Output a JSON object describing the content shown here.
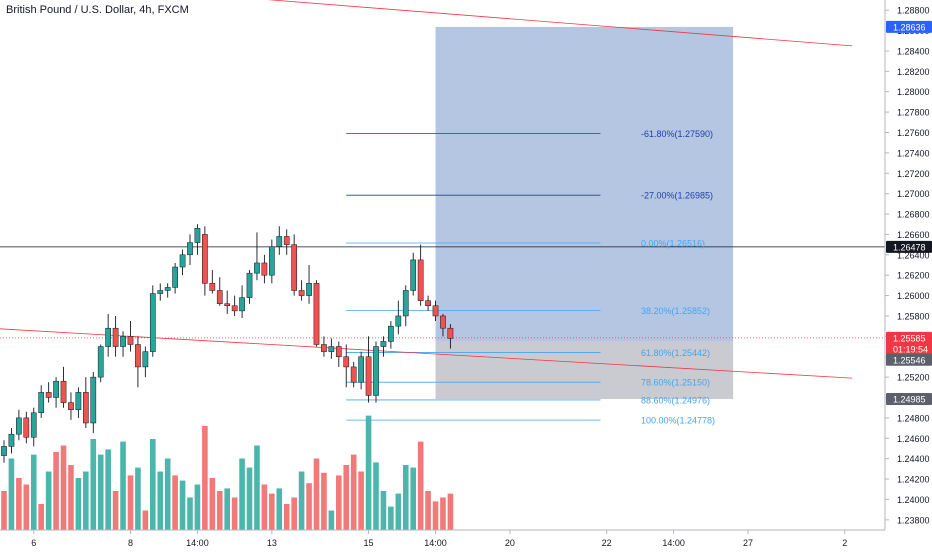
{
  "chart_data": {
    "type": "candlestick",
    "title": "British Pound / U.S. Dollar, 4h, FXCM",
    "ylim": [
      1.237,
      1.289
    ],
    "price_ticks": [
      "1.28800",
      "1.28600",
      "1.28400",
      "1.28200",
      "1.28000",
      "1.27800",
      "1.27600",
      "1.27400",
      "1.27200",
      "1.27000",
      "1.26800",
      "1.26600",
      "1.26400",
      "1.26200",
      "1.26000",
      "1.25800",
      "1.25600",
      "1.25400",
      "1.25200",
      "1.25000",
      "1.24800",
      "1.24600",
      "1.24400",
      "1.24200",
      "1.24000",
      "1.23800"
    ],
    "time_ticks": [
      {
        "label": "6",
        "bar": 4
      },
      {
        "label": "8",
        "bar": 17
      },
      {
        "label": "14:00",
        "bar": 26
      },
      {
        "label": "13",
        "bar": 36
      },
      {
        "label": "15",
        "bar": 49
      },
      {
        "label": "14:00",
        "bar": 58
      },
      {
        "label": "20",
        "bar": 68
      },
      {
        "label": "22",
        "bar": 81
      },
      {
        "label": "14:00",
        "bar": 90
      },
      {
        "label": "27",
        "bar": 100
      },
      {
        "label": "2",
        "bar": 113
      }
    ],
    "candles": [
      {
        "o": 1.2443,
        "h": 1.2458,
        "l": 1.2436,
        "c": 1.2452
      },
      {
        "o": 1.2452,
        "h": 1.247,
        "l": 1.2445,
        "c": 1.2464
      },
      {
        "o": 1.2464,
        "h": 1.2488,
        "l": 1.2458,
        "c": 1.248
      },
      {
        "o": 1.248,
        "h": 1.2486,
        "l": 1.2455,
        "c": 1.2461
      },
      {
        "o": 1.2461,
        "h": 1.249,
        "l": 1.2452,
        "c": 1.2485
      },
      {
        "o": 1.2485,
        "h": 1.2512,
        "l": 1.248,
        "c": 1.2505
      },
      {
        "o": 1.2505,
        "h": 1.2515,
        "l": 1.2495,
        "c": 1.25
      },
      {
        "o": 1.25,
        "h": 1.252,
        "l": 1.249,
        "c": 1.2516
      },
      {
        "o": 1.2516,
        "h": 1.253,
        "l": 1.249,
        "c": 1.2495
      },
      {
        "o": 1.2495,
        "h": 1.2505,
        "l": 1.2478,
        "c": 1.2488
      },
      {
        "o": 1.2488,
        "h": 1.251,
        "l": 1.248,
        "c": 1.2505
      },
      {
        "o": 1.2505,
        "h": 1.252,
        "l": 1.247,
        "c": 1.2475
      },
      {
        "o": 1.2475,
        "h": 1.2525,
        "l": 1.2465,
        "c": 1.252
      },
      {
        "o": 1.252,
        "h": 1.2552,
        "l": 1.2515,
        "c": 1.255
      },
      {
        "o": 1.255,
        "h": 1.2582,
        "l": 1.254,
        "c": 1.2568
      },
      {
        "o": 1.2568,
        "h": 1.258,
        "l": 1.254,
        "c": 1.255
      },
      {
        "o": 1.255,
        "h": 1.2565,
        "l": 1.254,
        "c": 1.256
      },
      {
        "o": 1.256,
        "h": 1.2575,
        "l": 1.2545,
        "c": 1.2552
      },
      {
        "o": 1.2552,
        "h": 1.256,
        "l": 1.251,
        "c": 1.253
      },
      {
        "o": 1.253,
        "h": 1.255,
        "l": 1.252,
        "c": 1.2545
      },
      {
        "o": 1.2545,
        "h": 1.261,
        "l": 1.254,
        "c": 1.2602
      },
      {
        "o": 1.2602,
        "h": 1.2612,
        "l": 1.2595,
        "c": 1.2605
      },
      {
        "o": 1.2605,
        "h": 1.2612,
        "l": 1.2598,
        "c": 1.2608
      },
      {
        "o": 1.2608,
        "h": 1.2632,
        "l": 1.2602,
        "c": 1.2628
      },
      {
        "o": 1.2628,
        "h": 1.2645,
        "l": 1.262,
        "c": 1.264
      },
      {
        "o": 1.264,
        "h": 1.266,
        "l": 1.263,
        "c": 1.2652
      },
      {
        "o": 1.2652,
        "h": 1.267,
        "l": 1.264,
        "c": 1.2666
      },
      {
        "o": 1.266,
        "h": 1.2668,
        "l": 1.26,
        "c": 1.2612
      },
      {
        "o": 1.2612,
        "h": 1.2625,
        "l": 1.2602,
        "c": 1.2605
      },
      {
        "o": 1.2605,
        "h": 1.2618,
        "l": 1.259,
        "c": 1.2592
      },
      {
        "o": 1.2592,
        "h": 1.2605,
        "l": 1.2582,
        "c": 1.259
      },
      {
        "o": 1.259,
        "h": 1.26,
        "l": 1.258,
        "c": 1.2585
      },
      {
        "o": 1.2585,
        "h": 1.261,
        "l": 1.2578,
        "c": 1.2598
      },
      {
        "o": 1.2598,
        "h": 1.2625,
        "l": 1.2592,
        "c": 1.2622
      },
      {
        "o": 1.2622,
        "h": 1.2662,
        "l": 1.2615,
        "c": 1.2632
      },
      {
        "o": 1.2632,
        "h": 1.264,
        "l": 1.2612,
        "c": 1.262
      },
      {
        "o": 1.262,
        "h": 1.2655,
        "l": 1.2612,
        "c": 1.2648
      },
      {
        "o": 1.2648,
        "h": 1.2668,
        "l": 1.264,
        "c": 1.2658
      },
      {
        "o": 1.2658,
        "h": 1.2665,
        "l": 1.264,
        "c": 1.265
      },
      {
        "o": 1.265,
        "h": 1.266,
        "l": 1.26,
        "c": 1.2605
      },
      {
        "o": 1.2605,
        "h": 1.2615,
        "l": 1.2595,
        "c": 1.26
      },
      {
        "o": 1.26,
        "h": 1.263,
        "l": 1.2592,
        "c": 1.2612
      },
      {
        "o": 1.2612,
        "h": 1.2615,
        "l": 1.255,
        "c": 1.2552
      },
      {
        "o": 1.2552,
        "h": 1.256,
        "l": 1.254,
        "c": 1.2545
      },
      {
        "o": 1.2545,
        "h": 1.2558,
        "l": 1.2538,
        "c": 1.255
      },
      {
        "o": 1.255,
        "h": 1.2555,
        "l": 1.253,
        "c": 1.254
      },
      {
        "o": 1.254,
        "h": 1.2552,
        "l": 1.251,
        "c": 1.253
      },
      {
        "o": 1.253,
        "h": 1.2535,
        "l": 1.251,
        "c": 1.2515
      },
      {
        "o": 1.2515,
        "h": 1.2545,
        "l": 1.2508,
        "c": 1.254
      },
      {
        "o": 1.254,
        "h": 1.256,
        "l": 1.2495,
        "c": 1.2502
      },
      {
        "o": 1.2502,
        "h": 1.2555,
        "l": 1.2495,
        "c": 1.255
      },
      {
        "o": 1.255,
        "h": 1.256,
        "l": 1.254,
        "c": 1.2555
      },
      {
        "o": 1.2555,
        "h": 1.2575,
        "l": 1.2548,
        "c": 1.257
      },
      {
        "o": 1.257,
        "h": 1.2595,
        "l": 1.2562,
        "c": 1.258
      },
      {
        "o": 1.258,
        "h": 1.261,
        "l": 1.257,
        "c": 1.2605
      },
      {
        "o": 1.2605,
        "h": 1.2642,
        "l": 1.26,
        "c": 1.2635
      },
      {
        "o": 1.2635,
        "h": 1.265,
        "l": 1.259,
        "c": 1.2595
      },
      {
        "o": 1.2595,
        "h": 1.26,
        "l": 1.2585,
        "c": 1.259
      },
      {
        "o": 1.259,
        "h": 1.2595,
        "l": 1.2575,
        "c": 1.258
      },
      {
        "o": 1.258,
        "h": 1.2582,
        "l": 1.256,
        "c": 1.2568
      },
      {
        "o": 1.2568,
        "h": 1.2572,
        "l": 1.2548,
        "c": 1.2558
      }
    ],
    "volumes": [
      {
        "v": 0.3,
        "up": false
      },
      {
        "v": 0.55,
        "up": true
      },
      {
        "v": 0.4,
        "up": false
      },
      {
        "v": 0.35,
        "up": false
      },
      {
        "v": 0.58,
        "up": true
      },
      {
        "v": 0.2,
        "up": false
      },
      {
        "v": 0.45,
        "up": true
      },
      {
        "v": 0.6,
        "up": false
      },
      {
        "v": 0.65,
        "up": false
      },
      {
        "v": 0.5,
        "up": false
      },
      {
        "v": 0.4,
        "up": true
      },
      {
        "v": 0.45,
        "up": true
      },
      {
        "v": 0.7,
        "up": true
      },
      {
        "v": 0.58,
        "up": true
      },
      {
        "v": 0.62,
        "up": true
      },
      {
        "v": 0.3,
        "up": false
      },
      {
        "v": 0.68,
        "up": true
      },
      {
        "v": 0.42,
        "up": false
      },
      {
        "v": 0.48,
        "up": true
      },
      {
        "v": 0.15,
        "up": false
      },
      {
        "v": 0.7,
        "up": true
      },
      {
        "v": 0.45,
        "up": true
      },
      {
        "v": 0.55,
        "up": true
      },
      {
        "v": 0.42,
        "up": false
      },
      {
        "v": 0.38,
        "up": true
      },
      {
        "v": 0.25,
        "up": true
      },
      {
        "v": 0.35,
        "up": true
      },
      {
        "v": 0.8,
        "up": false
      },
      {
        "v": 0.4,
        "up": false
      },
      {
        "v": 0.3,
        "up": false
      },
      {
        "v": 0.32,
        "up": true
      },
      {
        "v": 0.25,
        "up": false
      },
      {
        "v": 0.55,
        "up": true
      },
      {
        "v": 0.48,
        "up": true
      },
      {
        "v": 0.65,
        "up": true
      },
      {
        "v": 0.35,
        "up": false
      },
      {
        "v": 0.28,
        "up": false
      },
      {
        "v": 0.32,
        "up": true
      },
      {
        "v": 0.2,
        "up": false
      },
      {
        "v": 0.25,
        "up": false
      },
      {
        "v": 0.45,
        "up": true
      },
      {
        "v": 0.36,
        "up": false
      },
      {
        "v": 0.55,
        "up": false
      },
      {
        "v": 0.44,
        "up": false
      },
      {
        "v": 0.15,
        "up": true
      },
      {
        "v": 0.42,
        "up": false
      },
      {
        "v": 0.5,
        "up": false
      },
      {
        "v": 0.58,
        "up": false
      },
      {
        "v": 0.45,
        "up": false
      },
      {
        "v": 0.88,
        "up": true
      },
      {
        "v": 0.52,
        "up": true
      },
      {
        "v": 0.3,
        "up": true
      },
      {
        "v": 0.18,
        "up": true
      },
      {
        "v": 0.28,
        "up": true
      },
      {
        "v": 0.5,
        "up": true
      },
      {
        "v": 0.48,
        "up": true
      },
      {
        "v": 0.68,
        "up": false
      },
      {
        "v": 0.3,
        "up": false
      },
      {
        "v": 0.22,
        "up": false
      },
      {
        "v": 0.25,
        "up": false
      },
      {
        "v": 0.28,
        "up": false
      }
    ],
    "trendlines": [
      {
        "name": "upper-red",
        "p1": {
          "bar": -2,
          "price": 1.2912
        },
        "p2": {
          "bar": 114,
          "price": 1.2845
        },
        "color": "#f23645"
      },
      {
        "name": "lower-red",
        "p1": {
          "bar": -2,
          "price": 1.2568
        },
        "p2": {
          "bar": 114,
          "price": 1.2519
        },
        "color": "#f23645"
      }
    ],
    "current_price_line": {
      "price": 1.25585,
      "color": "#f23645"
    },
    "horizontal_line": {
      "price": 1.26478,
      "color": "#131722"
    },
    "projection_box": {
      "bar_from": 58,
      "bar_to": 98,
      "target_top": 1.28636,
      "entry": 1.25546,
      "stop": 1.24985,
      "profit_color": "#7f9ccf",
      "loss_color": "#b2b5be"
    },
    "fib_levels": [
      {
        "label": "-61.80%(1.27590)",
        "price": 1.2759,
        "color": "#1e3fa8",
        "bar_from": 46,
        "bar_to": 92
      },
      {
        "label": "-27.00%(1.26985)",
        "price": 1.26985,
        "color": "#1e3fa8",
        "bar_from": 46,
        "bar_to": 92
      },
      {
        "label": "0.00%(1.26516)",
        "price": 1.26516,
        "color": "#42a5f5",
        "bar_from": 46,
        "bar_to": 92
      },
      {
        "label": "38.20%(1.25852)",
        "price": 1.25852,
        "color": "#42a5f5",
        "bar_from": 46,
        "bar_to": 92
      },
      {
        "label": "61.80%(1.25442)",
        "price": 1.25442,
        "color": "#42a5f5",
        "bar_from": 46,
        "bar_to": 92
      },
      {
        "label": "78.60%(1.25150)",
        "price": 1.2515,
        "color": "#42a5f5",
        "bar_from": 46,
        "bar_to": 92
      },
      {
        "label": "88.60%(1.24976)",
        "price": 1.24976,
        "color": "#42a5f5",
        "bar_from": 46,
        "bar_to": 92
      },
      {
        "label": "100.00%(1.24778)",
        "price": 1.24778,
        "color": "#42a5f5",
        "bar_from": 46,
        "bar_to": 92
      }
    ],
    "price_labels": [
      {
        "text": "1.28636",
        "price": 1.28636,
        "bg": "#2962ff",
        "fg": "#ffffff"
      },
      {
        "text": "1.26478",
        "price": 1.26478,
        "bg": "#131722",
        "fg": "#ffffff"
      },
      {
        "text": "1.25585",
        "price": 1.25585,
        "bg": "#f23645",
        "fg": "#ffffff"
      },
      {
        "text": "01:19:54",
        "price": 1.25477,
        "bg": "#f23645",
        "fg": "#ffffff"
      },
      {
        "text": "1.25546",
        "price": 1.2537,
        "bg": "#5d606b",
        "fg": "#ffffff"
      },
      {
        "text": "1.24985",
        "price": 1.24985,
        "bg": "#5d606b",
        "fg": "#ffffff"
      }
    ],
    "colors": {
      "up": "#26a69a",
      "down": "#ef5350",
      "vol_up": "#4db6ac",
      "vol_down": "#ef7a78",
      "axis_text": "#131722"
    }
  }
}
